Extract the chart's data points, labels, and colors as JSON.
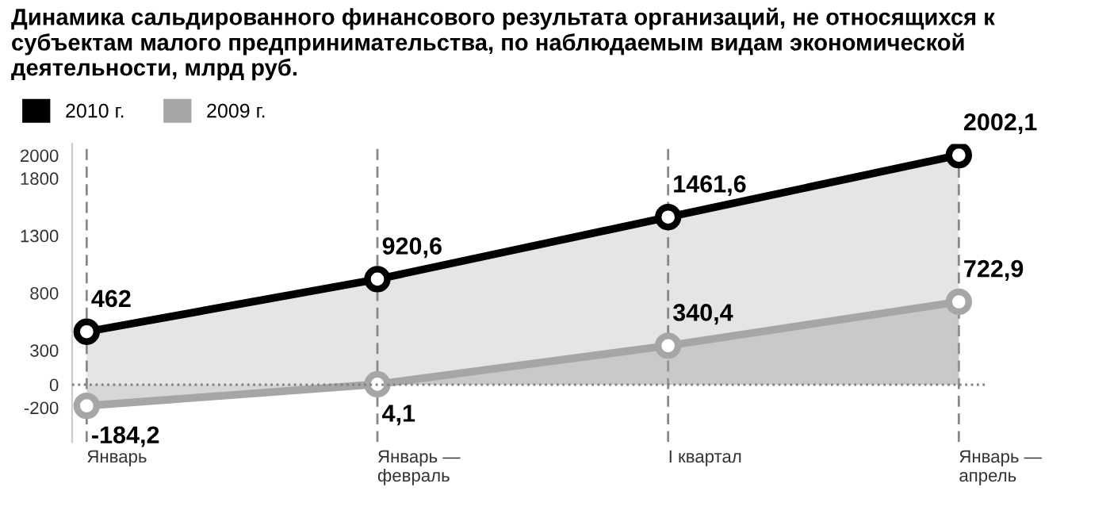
{
  "chart_data": {
    "type": "area",
    "title": "Динамика сальдированного финансового результата организаций, не относящихся к субъектам малого предпринимательства, по наблюдаемым видам экономической деятельности, млрд руб.",
    "categories": [
      "Январь",
      "Январь —\nфевраль",
      "I квартал",
      "Январь —\nапрель"
    ],
    "series": [
      {
        "name": "2010 г.",
        "color": "#000000",
        "values": [
          462,
          920.6,
          1461.6,
          2002.1
        ],
        "value_labels": [
          "462",
          "920,6",
          "1461,6",
          "2002,1"
        ]
      },
      {
        "name": "2009 г.",
        "color": "#a6a6a6",
        "values": [
          -184.2,
          4.1,
          340.4,
          722.9
        ],
        "value_labels": [
          "-184,2",
          "4,1",
          "340,4",
          "722,9"
        ]
      }
    ],
    "ylim": [
      -500,
      2100
    ],
    "yticks": [
      -200,
      0,
      300,
      800,
      1300,
      1800,
      2000
    ],
    "ref_lines": [
      {
        "axis": "y",
        "value": 0,
        "color": "#808080",
        "line_style": "dotted"
      }
    ],
    "grid": "x",
    "legend": "top left",
    "marker": "circle",
    "line_style": "solid"
  }
}
